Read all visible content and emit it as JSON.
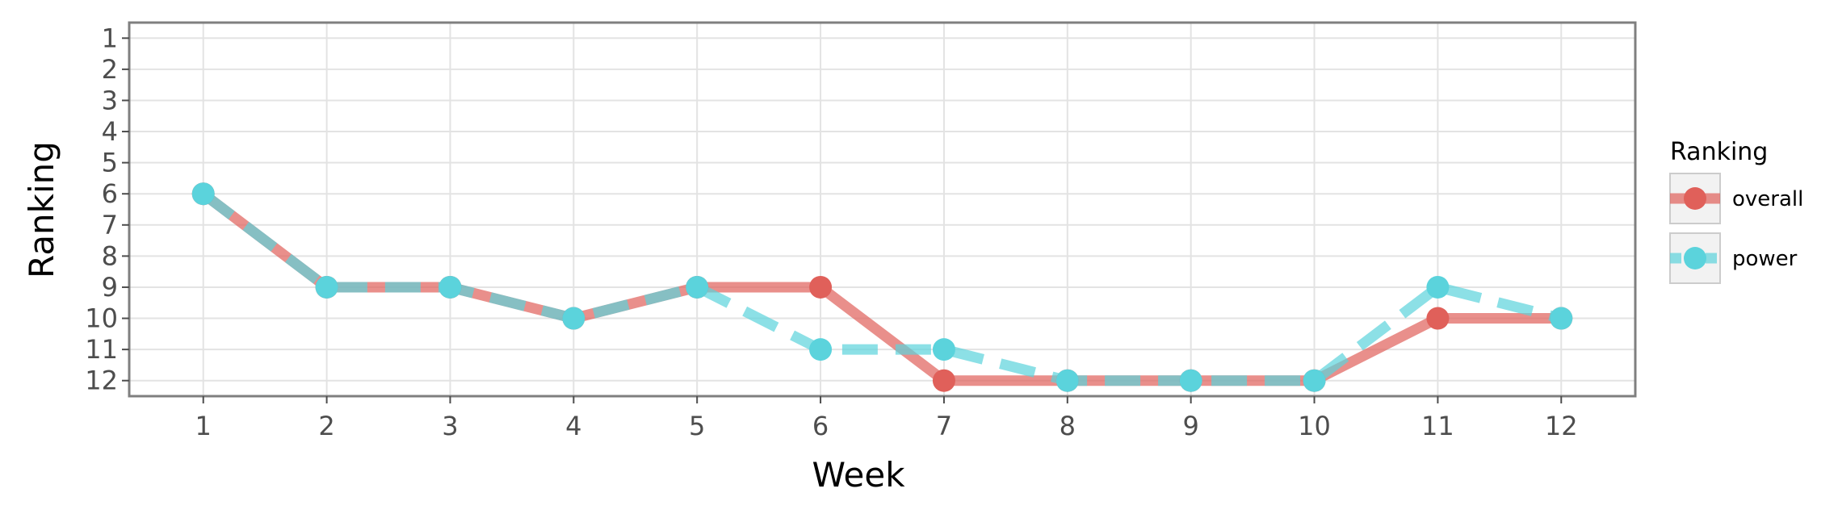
{
  "chart_data": {
    "type": "line",
    "xlabel": "Week",
    "ylabel": "Ranking",
    "x": [
      1,
      2,
      3,
      4,
      5,
      6,
      7,
      8,
      9,
      10,
      11,
      12
    ],
    "xlim": [
      0.4,
      12.6
    ],
    "ylim": [
      12.5,
      0.5
    ],
    "y_reversed": true,
    "y_ticks": [
      1,
      2,
      3,
      4,
      5,
      6,
      7,
      8,
      9,
      10,
      11,
      12
    ],
    "grid": true,
    "legend": {
      "title": "Ranking",
      "position": "right"
    },
    "series": [
      {
        "name": "overall",
        "values": [
          6,
          9,
          9,
          10,
          9,
          9,
          12,
          12,
          12,
          12,
          10,
          10
        ],
        "color": "#e0605a",
        "line_style": "solid"
      },
      {
        "name": "power",
        "values": [
          6,
          9,
          9,
          10,
          9,
          11,
          11,
          12,
          12,
          12,
          9,
          10
        ],
        "color": "#5bd3dc",
        "line_style": "dashed"
      }
    ]
  }
}
